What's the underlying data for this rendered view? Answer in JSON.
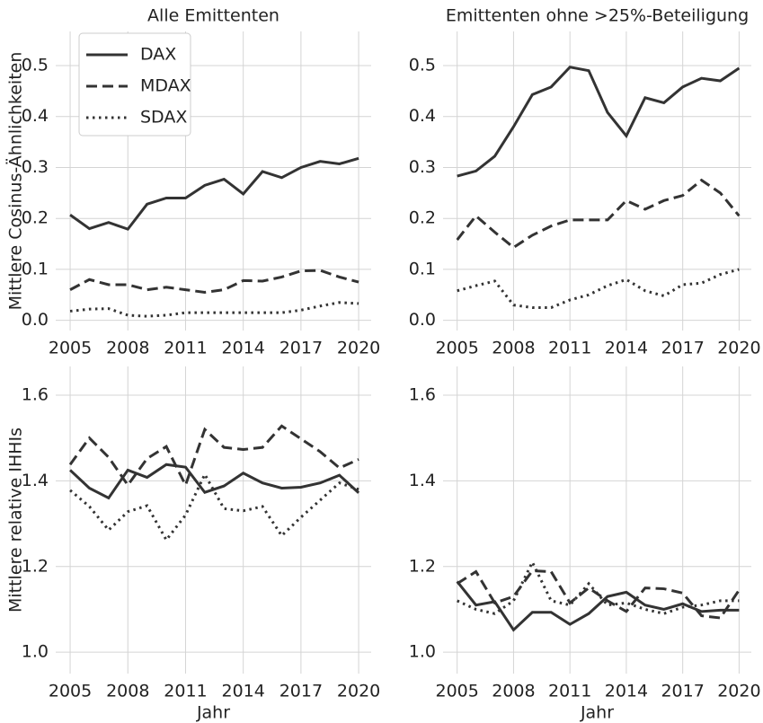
{
  "chart_data": [
    {
      "type": "line",
      "title": "Alle Emittenten",
      "ylabel": "Mittlere Cosinus-Ähnlichkeiten",
      "x": [
        2005,
        2006,
        2007,
        2008,
        2009,
        2010,
        2011,
        2012,
        2013,
        2014,
        2015,
        2016,
        2017,
        2018,
        2019,
        2020
      ],
      "xlim": [
        2004.25,
        2020.65
      ],
      "xticks": [
        2005,
        2008,
        2011,
        2014,
        2017,
        2020
      ],
      "ylim": [
        -0.02,
        0.567
      ],
      "yticks": [
        {
          "value": 0,
          "label": "0.0"
        },
        0.1,
        0.2,
        0.3,
        0.4,
        0.5
      ],
      "grid": true,
      "legend": "upper left",
      "series": [
        {
          "name": "DAX",
          "color": "#333333",
          "dash": "solid",
          "values": [
            0.207,
            0.18,
            0.192,
            0.179,
            0.228,
            0.24,
            0.24,
            0.265,
            0.277,
            0.248,
            0.292,
            0.28,
            0.3,
            0.312,
            0.307,
            0.318
          ]
        },
        {
          "name": "MDAX",
          "color": "#333333",
          "dash": "dashed",
          "values": [
            0.06,
            0.08,
            0.07,
            0.07,
            0.06,
            0.065,
            0.06,
            0.055,
            0.06,
            0.078,
            0.077,
            0.085,
            0.097,
            0.098,
            0.085,
            0.075
          ]
        },
        {
          "name": "SDAX",
          "color": "#333333",
          "dash": "dotted",
          "values": [
            0.018,
            0.022,
            0.023,
            0.01,
            0.008,
            0.01,
            0.015,
            0.015,
            0.015,
            0.015,
            0.015,
            0.015,
            0.02,
            0.028,
            0.035,
            0.033
          ]
        }
      ]
    },
    {
      "type": "line",
      "title": "Emittenten ohne >25%-Beteiligung",
      "x": [
        2005,
        2006,
        2007,
        2008,
        2009,
        2010,
        2011,
        2012,
        2013,
        2014,
        2015,
        2016,
        2017,
        2018,
        2019,
        2020
      ],
      "xlim": [
        2004.25,
        2020.65
      ],
      "xticks": [
        2005,
        2008,
        2011,
        2014,
        2017,
        2020
      ],
      "ylim": [
        -0.02,
        0.567
      ],
      "yticks": [
        {
          "value": 0,
          "label": "0.0"
        },
        0.1,
        0.2,
        0.3,
        0.4,
        0.5
      ],
      "grid": true,
      "series": [
        {
          "color": "#333333",
          "dash": "solid",
          "values": [
            0.283,
            0.293,
            0.322,
            0.38,
            0.443,
            0.458,
            0.497,
            0.49,
            0.408,
            0.362,
            0.437,
            0.427,
            0.458,
            0.475,
            0.47,
            0.495
          ]
        },
        {
          "color": "#333333",
          "dash": "dashed",
          "values": [
            0.158,
            0.205,
            0.173,
            0.143,
            0.167,
            0.185,
            0.197,
            0.197,
            0.197,
            0.235,
            0.218,
            0.235,
            0.245,
            0.275,
            0.25,
            0.205
          ]
        },
        {
          "color": "#333333",
          "dash": "dotted",
          "values": [
            0.058,
            0.068,
            0.077,
            0.03,
            0.025,
            0.025,
            0.04,
            0.05,
            0.068,
            0.08,
            0.058,
            0.048,
            0.07,
            0.073,
            0.09,
            0.1
          ]
        }
      ]
    },
    {
      "type": "line",
      "ylabel": "Mittlere relative IHHIs",
      "xlabel": "Jahr",
      "x": [
        2005,
        2006,
        2007,
        2008,
        2009,
        2010,
        2011,
        2012,
        2013,
        2014,
        2015,
        2016,
        2017,
        2018,
        2019,
        2020
      ],
      "xlim": [
        2004.25,
        2020.65
      ],
      "xticks": [
        2005,
        2008,
        2011,
        2014,
        2017,
        2020
      ],
      "ylim": [
        0.95,
        1.667
      ],
      "yticks": [
        {
          "value": 1,
          "label": "1.0"
        },
        1.2,
        1.4,
        1.6
      ],
      "grid": true,
      "series": [
        {
          "color": "#333333",
          "dash": "solid",
          "values": [
            1.425,
            1.383,
            1.36,
            1.425,
            1.408,
            1.438,
            1.432,
            1.373,
            1.388,
            1.418,
            1.395,
            1.383,
            1.385,
            1.395,
            1.413,
            1.372
          ]
        },
        {
          "color": "#333333",
          "dash": "dashed",
          "values": [
            1.438,
            1.5,
            1.455,
            1.39,
            1.452,
            1.48,
            1.39,
            1.52,
            1.478,
            1.473,
            1.478,
            1.528,
            1.498,
            1.468,
            1.43,
            1.45
          ]
        },
        {
          "color": "#333333",
          "dash": "dotted",
          "values": [
            1.378,
            1.34,
            1.285,
            1.328,
            1.342,
            1.262,
            1.32,
            1.415,
            1.335,
            1.33,
            1.34,
            1.272,
            1.315,
            1.355,
            1.395,
            1.38
          ]
        }
      ]
    },
    {
      "type": "line",
      "xlabel": "Jahr",
      "x": [
        2005,
        2006,
        2007,
        2008,
        2009,
        2010,
        2011,
        2012,
        2013,
        2014,
        2015,
        2016,
        2017,
        2018,
        2019,
        2020
      ],
      "xlim": [
        2004.25,
        2020.65
      ],
      "xticks": [
        2005,
        2008,
        2011,
        2014,
        2017,
        2020
      ],
      "ylim": [
        0.95,
        1.667
      ],
      "yticks": [
        {
          "value": 1,
          "label": "1.0"
        },
        1.2,
        1.4,
        1.6
      ],
      "grid": true,
      "series": [
        {
          "color": "#333333",
          "dash": "solid",
          "values": [
            1.165,
            1.11,
            1.118,
            1.052,
            1.093,
            1.093,
            1.065,
            1.09,
            1.13,
            1.14,
            1.11,
            1.1,
            1.113,
            1.095,
            1.098,
            1.098
          ]
        },
        {
          "color": "#333333",
          "dash": "dashed",
          "values": [
            1.16,
            1.188,
            1.115,
            1.13,
            1.19,
            1.188,
            1.115,
            1.15,
            1.12,
            1.095,
            1.15,
            1.148,
            1.138,
            1.085,
            1.08,
            1.145
          ]
        },
        {
          "color": "#333333",
          "dash": "dotted",
          "values": [
            1.12,
            1.1,
            1.09,
            1.12,
            1.21,
            1.12,
            1.11,
            1.16,
            1.11,
            1.115,
            1.1,
            1.09,
            1.105,
            1.11,
            1.12,
            1.12
          ]
        }
      ]
    }
  ]
}
